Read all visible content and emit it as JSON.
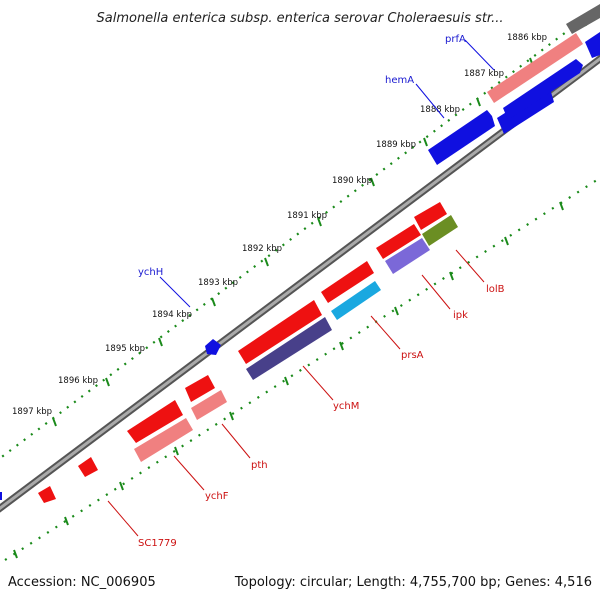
{
  "title": "Salmonella enterica subsp. enterica serovar Choleraesuis str...",
  "footer": {
    "accession": "Accession: NC_006905",
    "summary": "Topology: circular; Length: 4,755,700 bp; Genes: 4,516"
  },
  "ticks": [
    "1886 kbp",
    "1887 kbp",
    "1888 kbp",
    "1889 kbp",
    "1890 kbp",
    "1891 kbp",
    "1892 kbp",
    "1893 kbp",
    "1894 kbp",
    "1895 kbp",
    "1896 kbp",
    "1897 kbp"
  ],
  "genes_forward": [
    "prfA",
    "hemA",
    "ychH"
  ],
  "genes_reverse": [
    "lolB",
    "ipk",
    "prsA",
    "ychM",
    "pth",
    "ychF",
    "SC1779"
  ],
  "colors": {
    "forward_cds": "#1010e0",
    "reverse_cds": "#ee1111",
    "reverse_light": "#f08080",
    "ipk": "#7b68d8",
    "prsA": "#1aa8e0",
    "lolB": "#6b8e23",
    "ychM": "#48408a",
    "backbone": "#888888",
    "ticks": "#1a8a1a"
  }
}
